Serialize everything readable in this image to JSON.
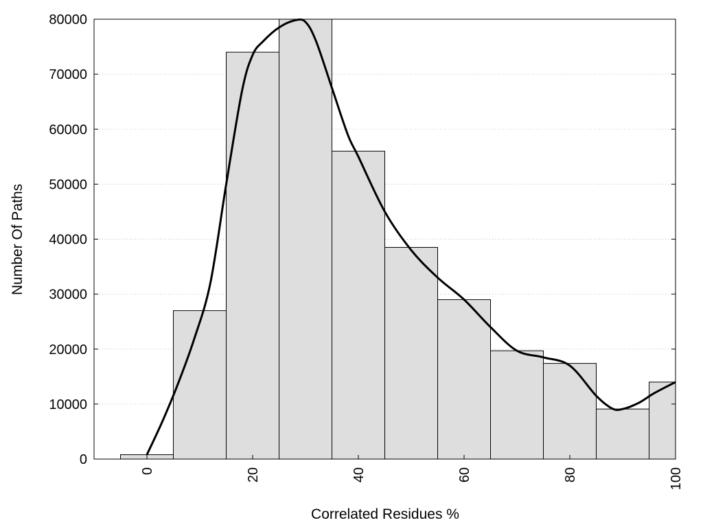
{
  "chart_data": {
    "type": "bar",
    "title": "",
    "xlabel": "Correlated Residues %",
    "ylabel": "Number Of Paths",
    "x": [
      0,
      10,
      20,
      30,
      40,
      50,
      60,
      70,
      80,
      90,
      100
    ],
    "values": [
      800,
      27000,
      74000,
      80000,
      56000,
      38500,
      29000,
      19700,
      17400,
      9100,
      14000
    ],
    "xlim": [
      -10,
      100
    ],
    "ylim": [
      0,
      80000
    ],
    "xticks": [
      "0",
      "20",
      "40",
      "60",
      "80",
      "100"
    ],
    "xtick_values": [
      0,
      20,
      40,
      60,
      80,
      100
    ],
    "yticks": [
      "0",
      "10000",
      "20000",
      "30000",
      "40000",
      "50000",
      "60000",
      "70000",
      "80000"
    ],
    "ytick_values": [
      0,
      10000,
      20000,
      30000,
      40000,
      50000,
      60000,
      70000,
      80000
    ],
    "grid": "horizontal-dotted",
    "bar_color": "#dedede",
    "curve": {
      "x": [
        0,
        3,
        6,
        9,
        12,
        15,
        18,
        20,
        22,
        25,
        28,
        30,
        32,
        35,
        38,
        40,
        45,
        50,
        55,
        60,
        65,
        70,
        75,
        80,
        85,
        88,
        90,
        93,
        96,
        100
      ],
      "y": [
        800,
        7000,
        14000,
        22000,
        32000,
        50000,
        67000,
        73500,
        76000,
        78500,
        79800,
        79500,
        76000,
        67500,
        59000,
        55000,
        45000,
        38000,
        33000,
        29000,
        24000,
        19700,
        18500,
        17000,
        11500,
        9200,
        9100,
        10200,
        12000,
        14000
      ],
      "color": "#000000"
    }
  }
}
